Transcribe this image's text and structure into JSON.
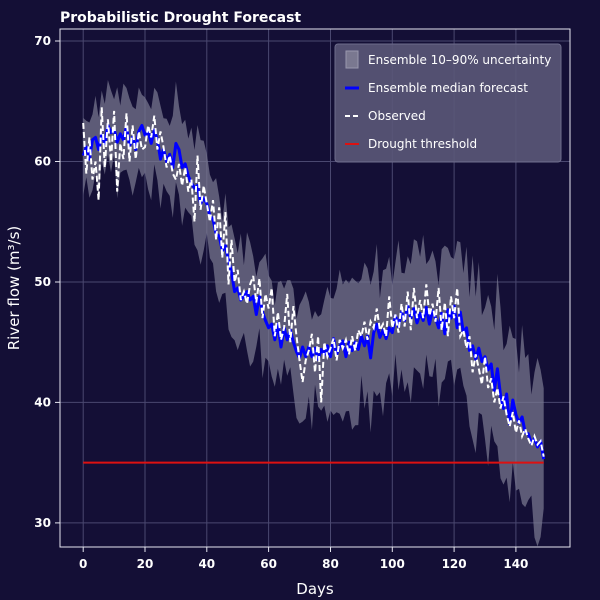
{
  "chart_data": {
    "type": "line",
    "title": "Probabilistic Drought Forecast",
    "xlabel": "Days",
    "ylabel": "River flow (m³/s)",
    "xlim": [
      -7.5,
      157.5
    ],
    "ylim": [
      28,
      71
    ],
    "xticks": [
      0,
      20,
      40,
      60,
      80,
      100,
      120,
      140
    ],
    "yticks": [
      30,
      40,
      50,
      60,
      70
    ],
    "grid": true,
    "legend_position": "top-right",
    "colors": {
      "background": "#140f36",
      "band": "#7a7890",
      "median": "#0000ff",
      "observed": "#ffffff",
      "threshold": "#dd1111",
      "legend_bg": "#5a5878",
      "grid": "#4a4870"
    },
    "median_points": [
      [
        0,
        60.5
      ],
      [
        1,
        61.2
      ],
      [
        2,
        60.2
      ],
      [
        3,
        61.8
      ],
      [
        4,
        62.0
      ],
      [
        5,
        61.0
      ],
      [
        6,
        62.2
      ],
      [
        7,
        61.5
      ],
      [
        8,
        63.0
      ],
      [
        9,
        62.4
      ],
      [
        10,
        62.7
      ],
      [
        11,
        61.6
      ],
      [
        12,
        62.3
      ],
      [
        13,
        61.8
      ],
      [
        14,
        62.9
      ],
      [
        15,
        61.3
      ],
      [
        16,
        62.0
      ],
      [
        17,
        61.0
      ],
      [
        18,
        62.5
      ],
      [
        19,
        63.0
      ],
      [
        20,
        62.2
      ],
      [
        21,
        62.5
      ],
      [
        22,
        61.5
      ],
      [
        23,
        62.6
      ],
      [
        24,
        61.8
      ],
      [
        25,
        60.2
      ],
      [
        26,
        61.0
      ],
      [
        27,
        60.0
      ],
      [
        28,
        60.6
      ],
      [
        29,
        59.5
      ],
      [
        30,
        61.5
      ],
      [
        31,
        61.0
      ],
      [
        32,
        59.5
      ],
      [
        33,
        59.8
      ],
      [
        34,
        58.8
      ],
      [
        35,
        58.2
      ],
      [
        36,
        57.8
      ],
      [
        37,
        58.0
      ],
      [
        38,
        56.5
      ],
      [
        39,
        57.0
      ],
      [
        40,
        56.5
      ],
      [
        41,
        55.5
      ],
      [
        42,
        55.2
      ],
      [
        43,
        54.0
      ],
      [
        44,
        53.8
      ],
      [
        45,
        52.6
      ],
      [
        46,
        53.0
      ],
      [
        47,
        51.8
      ],
      [
        48,
        50.8
      ],
      [
        49,
        49.2
      ],
      [
        50,
        49.5
      ],
      [
        51,
        48.5
      ],
      [
        52,
        48.8
      ],
      [
        53,
        49.2
      ],
      [
        54,
        48.5
      ],
      [
        55,
        48.8
      ],
      [
        56,
        47.3
      ],
      [
        57,
        48.8
      ],
      [
        58,
        47.5
      ],
      [
        59,
        46.8
      ],
      [
        60,
        46.2
      ],
      [
        61,
        46.5
      ],
      [
        62,
        45.2
      ],
      [
        63,
        46.5
      ],
      [
        64,
        44.6
      ],
      [
        65,
        46.2
      ],
      [
        66,
        45.2
      ],
      [
        67,
        46.0
      ],
      [
        68,
        45.0
      ],
      [
        69,
        44.2
      ],
      [
        70,
        43.7
      ],
      [
        71,
        44.6
      ],
      [
        72,
        43.8
      ],
      [
        73,
        44.6
      ],
      [
        74,
        43.8
      ],
      [
        75,
        44.5
      ],
      [
        76,
        43.6
      ],
      [
        77,
        44.4
      ],
      [
        78,
        44.0
      ],
      [
        79,
        44.7
      ],
      [
        80,
        43.8
      ],
      [
        81,
        45.3
      ],
      [
        82,
        44.0
      ],
      [
        83,
        44.6
      ],
      [
        84,
        45.1
      ],
      [
        85,
        43.8
      ],
      [
        86,
        45.0
      ],
      [
        87,
        44.3
      ],
      [
        88,
        45.0
      ],
      [
        89,
        44.4
      ],
      [
        90,
        45.5
      ],
      [
        91,
        44.7
      ],
      [
        92,
        45.5
      ],
      [
        93,
        43.7
      ],
      [
        94,
        45.8
      ],
      [
        95,
        46.5
      ],
      [
        96,
        45.4
      ],
      [
        97,
        46.0
      ],
      [
        98,
        45.3
      ],
      [
        99,
        46.2
      ],
      [
        100,
        45.8
      ],
      [
        101,
        47.2
      ],
      [
        102,
        46.3
      ],
      [
        103,
        47.5
      ],
      [
        104,
        46.8
      ],
      [
        105,
        48.0
      ],
      [
        106,
        47.0
      ],
      [
        107,
        47.8
      ],
      [
        108,
        46.6
      ],
      [
        109,
        47.4
      ],
      [
        110,
        46.8
      ],
      [
        111,
        47.9
      ],
      [
        112,
        46.5
      ],
      [
        113,
        47.6
      ],
      [
        114,
        47.0
      ],
      [
        115,
        46.2
      ],
      [
        116,
        47.4
      ],
      [
        117,
        45.7
      ],
      [
        118,
        47.7
      ],
      [
        119,
        47.0
      ],
      [
        120,
        48.0
      ],
      [
        121,
        46.2
      ],
      [
        122,
        47.5
      ],
      [
        123,
        45.8
      ],
      [
        124,
        46.2
      ],
      [
        125,
        44.3
      ],
      [
        126,
        44.7
      ],
      [
        127,
        43.6
      ],
      [
        128,
        44.5
      ],
      [
        129,
        43.4
      ],
      [
        130,
        43.8
      ],
      [
        131,
        42.7
      ],
      [
        132,
        43.2
      ],
      [
        133,
        41.0
      ],
      [
        134,
        42.8
      ],
      [
        135,
        40.6
      ],
      [
        136,
        39.5
      ],
      [
        137,
        40.7
      ],
      [
        138,
        38.2
      ],
      [
        139,
        40.2
      ],
      [
        140,
        39.0
      ],
      [
        141,
        38.3
      ],
      [
        142,
        38.8
      ],
      [
        143,
        37.5
      ],
      [
        144,
        37.4
      ],
      [
        145,
        36.6
      ],
      [
        146,
        37.0
      ],
      [
        147,
        36.3
      ],
      [
        148,
        36.8
      ],
      [
        149,
        35.3
      ]
    ],
    "observed_points": [
      [
        0,
        63.2
      ],
      [
        1,
        59.0
      ],
      [
        2,
        62.0
      ],
      [
        3,
        58.5
      ],
      [
        4,
        60.0
      ],
      [
        5,
        56.8
      ],
      [
        6,
        64.5
      ],
      [
        7,
        59.5
      ],
      [
        8,
        63.5
      ],
      [
        9,
        60.0
      ],
      [
        10,
        64.2
      ],
      [
        11,
        57.5
      ],
      [
        12,
        61.5
      ],
      [
        13,
        60.2
      ],
      [
        14,
        64.0
      ],
      [
        15,
        60.0
      ],
      [
        16,
        63.0
      ],
      [
        17,
        60.2
      ],
      [
        18,
        62.5
      ],
      [
        19,
        61.0
      ],
      [
        20,
        61.2
      ],
      [
        21,
        63.0
      ],
      [
        22,
        62.0
      ],
      [
        23,
        63.8
      ],
      [
        24,
        61.0
      ],
      [
        25,
        62.5
      ],
      [
        26,
        61.2
      ],
      [
        27,
        59.5
      ],
      [
        28,
        60.5
      ],
      [
        29,
        59.0
      ],
      [
        30,
        58.5
      ],
      [
        31,
        59.8
      ],
      [
        32,
        58.0
      ],
      [
        33,
        59.5
      ],
      [
        34,
        57.5
      ],
      [
        35,
        58.5
      ],
      [
        36,
        55.0
      ],
      [
        37,
        60.5
      ],
      [
        38,
        56.0
      ],
      [
        39,
        58.0
      ],
      [
        40,
        56.5
      ],
      [
        41,
        55.0
      ],
      [
        42,
        56.8
      ],
      [
        43,
        53.5
      ],
      [
        44,
        56.2
      ],
      [
        45,
        52.0
      ],
      [
        46,
        55.8
      ],
      [
        47,
        49.8
      ],
      [
        48,
        53.5
      ],
      [
        49,
        50.0
      ],
      [
        50,
        51.0
      ],
      [
        51,
        48.5
      ],
      [
        52,
        49.2
      ],
      [
        53,
        48.2
      ],
      [
        54,
        49.8
      ],
      [
        55,
        50.5
      ],
      [
        56,
        48.3
      ],
      [
        57,
        50.3
      ],
      [
        58,
        47.0
      ],
      [
        59,
        49.0
      ],
      [
        60,
        47.8
      ],
      [
        61,
        49.5
      ],
      [
        62,
        45.5
      ],
      [
        63,
        47.5
      ],
      [
        64,
        45.2
      ],
      [
        65,
        46.2
      ],
      [
        66,
        49.0
      ],
      [
        67,
        45.0
      ],
      [
        68,
        48.0
      ],
      [
        69,
        45.5
      ],
      [
        70,
        43.5
      ],
      [
        71,
        41.7
      ],
      [
        72,
        43.5
      ],
      [
        73,
        44.3
      ],
      [
        74,
        45.7
      ],
      [
        75,
        42.5
      ],
      [
        76,
        45.5
      ],
      [
        77,
        40.0
      ],
      [
        78,
        45.0
      ],
      [
        79,
        43.8
      ],
      [
        80,
        44.5
      ],
      [
        81,
        45.3
      ],
      [
        82,
        43.5
      ],
      [
        83,
        45.2
      ],
      [
        84,
        44.5
      ],
      [
        85,
        45.2
      ],
      [
        86,
        44.0
      ],
      [
        87,
        45.5
      ],
      [
        88,
        44.3
      ],
      [
        89,
        46.0
      ],
      [
        90,
        45.5
      ],
      [
        91,
        46.7
      ],
      [
        92,
        45.2
      ],
      [
        93,
        46.7
      ],
      [
        94,
        46.2
      ],
      [
        95,
        47.8
      ],
      [
        96,
        46.0
      ],
      [
        97,
        46.5
      ],
      [
        98,
        45.5
      ],
      [
        99,
        48.8
      ],
      [
        100,
        46.2
      ],
      [
        101,
        47.3
      ],
      [
        102,
        45.8
      ],
      [
        103,
        48.2
      ],
      [
        104,
        46.3
      ],
      [
        105,
        49.2
      ],
      [
        106,
        46.0
      ],
      [
        107,
        49.5
      ],
      [
        108,
        47.0
      ],
      [
        109,
        48.5
      ],
      [
        110,
        47.0
      ],
      [
        111,
        49.8
      ],
      [
        112,
        47.2
      ],
      [
        113,
        48.2
      ],
      [
        114,
        46.7
      ],
      [
        115,
        49.5
      ],
      [
        116,
        46.0
      ],
      [
        117,
        48.3
      ],
      [
        118,
        45.5
      ],
      [
        119,
        48.8
      ],
      [
        120,
        47.0
      ],
      [
        121,
        49.5
      ],
      [
        122,
        45.5
      ],
      [
        123,
        46.0
      ],
      [
        124,
        44.5
      ],
      [
        125,
        45.5
      ],
      [
        126,
        42.5
      ],
      [
        127,
        44.0
      ],
      [
        128,
        42.8
      ],
      [
        129,
        41.5
      ],
      [
        130,
        43.8
      ],
      [
        131,
        41.2
      ],
      [
        132,
        42.0
      ],
      [
        133,
        40.0
      ],
      [
        134,
        41.2
      ],
      [
        135,
        39.5
      ],
      [
        136,
        40.5
      ],
      [
        137,
        39.0
      ],
      [
        138,
        38.0
      ],
      [
        139,
        39.2
      ],
      [
        140,
        37.5
      ],
      [
        141,
        38.5
      ],
      [
        142,
        37.2
      ],
      [
        143,
        37.8
      ],
      [
        144,
        37.0
      ],
      [
        145,
        36.4
      ],
      [
        146,
        37.2
      ],
      [
        147,
        36.5
      ],
      [
        148,
        36.8
      ],
      [
        149,
        35.5
      ]
    ],
    "threshold": 35,
    "legend": [
      "Ensemble 10–90% uncertainty",
      "Ensemble median forecast",
      "Observed",
      "Drought threshold"
    ]
  }
}
